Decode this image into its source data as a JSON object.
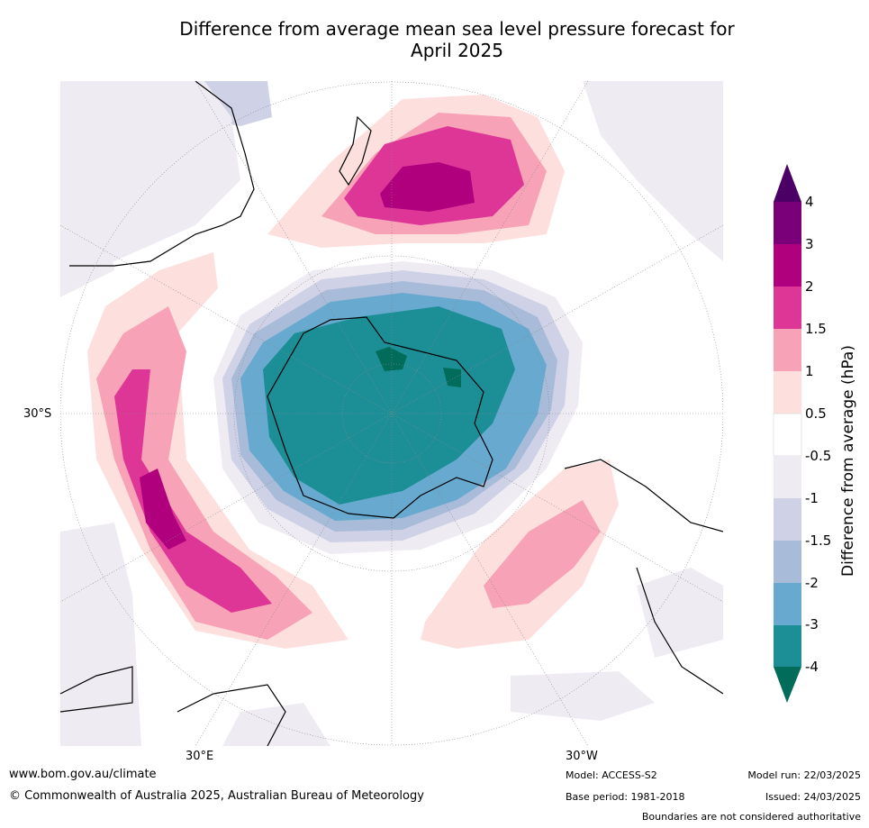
{
  "title_line1": "Difference from average mean sea level pressure forecast for",
  "title_line2": "April 2025",
  "map": {
    "projection": "south-polar-stereographic",
    "lat_labels": {
      "left": "30°S"
    },
    "lon_labels": {
      "bottom_left": "30°E",
      "bottom_right": "30°W"
    },
    "anomaly_features": [
      {
        "name": "New Zealand / Tasman positive anomaly",
        "max_hpa": 3
      },
      {
        "name": "Southern Indian Ocean positive anomaly",
        "max_hpa": 3
      },
      {
        "name": "South Atlantic positive anomaly",
        "max_hpa": 1.5
      },
      {
        "name": "Antarctic negative anomaly",
        "min_hpa": -4
      }
    ]
  },
  "colorbar": {
    "label": "Difference from average (hPa)",
    "tick_labels": [
      "4",
      "3",
      "2",
      "1.5",
      "1",
      "0.5",
      "-0.5",
      "-1",
      "-1.5",
      "-2",
      "-3",
      "-4"
    ],
    "colors": {
      "above_4": "#4b0066",
      "3_to_4": "#7a007a",
      "2_to_3": "#b0007e",
      "1.5_to_2": "#de3697",
      "1_to_1.5": "#f7a2b7",
      "0.5_to_1": "#fde0de",
      "-0.5_to_0.5": "#ffffff",
      "-1_to_-0.5": "#efebf3",
      "-1.5_to_-1": "#cfd1e6",
      "-2_to_-1.5": "#a8bcd9",
      "-3_to_-2": "#67a9cf",
      "-4_to_-3": "#1c8f96",
      "below_-4": "#016c59"
    }
  },
  "footer": {
    "website": "www.bom.gov.au/climate",
    "copyright": "© Commonwealth of Australia 2025, Australian Bureau of Meteorology",
    "model": "Model: ACCESS-S2",
    "base_period": "Base period: 1981-2018",
    "model_run": "Model run: 22/03/2025",
    "issued": "Issued: 24/03/2025",
    "disclaimer": "Boundaries are not considered authoritative"
  }
}
